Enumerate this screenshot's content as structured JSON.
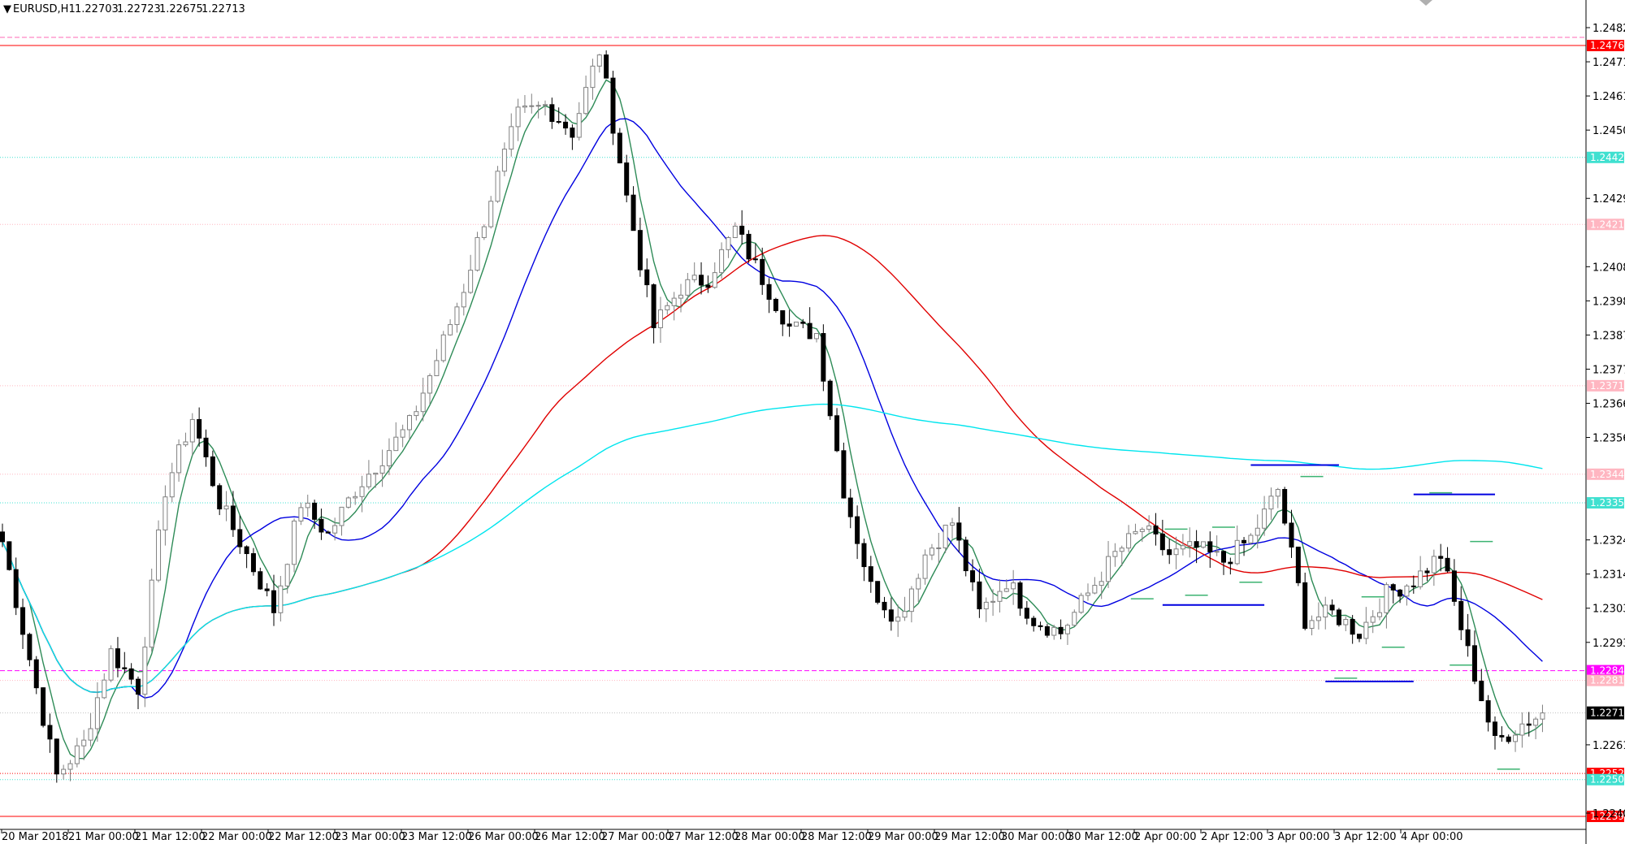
{
  "header": {
    "symbol": "EURUSD,H1",
    "open": "1.22703",
    "high": "1.22723",
    "low": "1.22675",
    "close": "1.22713",
    "menu_icon": "triangle-down-icon"
  },
  "colors": {
    "background": "#ffffff",
    "bull_candle": "#ffffff",
    "bear_candle": "#000000",
    "candle_outline": "#808080",
    "ma_fast": "#2e8b57",
    "ma_mid": "#0000e0",
    "ma_slow": "#e00000",
    "ma_cyan": "#00e5ee",
    "grid_border": "#000000"
  },
  "chart_data": {
    "type": "candlestick",
    "symbol": "EURUSD",
    "timeframe": "H1",
    "ylim": [
      1.22355,
      1.2487
    ],
    "price_ticks": [
      "1.24820",
      "1.24715",
      "1.24610",
      "1.24505",
      "1.24295",
      "1.24085",
      "1.23980",
      "1.23875",
      "1.23770",
      "1.23665",
      "1.23560",
      "1.23245",
      "1.23140",
      "1.23035",
      "1.22930",
      "1.22615",
      "1.22405"
    ],
    "time_labels": [
      "20 Mar 2018",
      "21 Mar 00:00",
      "21 Mar 12:00",
      "22 Mar 00:00",
      "22 Mar 12:00",
      "23 Mar 00:00",
      "23 Mar 12:00",
      "26 Mar 00:00",
      "26 Mar 12:00",
      "27 Mar 00:00",
      "27 Mar 12:00",
      "28 Mar 00:00",
      "28 Mar 12:00",
      "29 Mar 00:00",
      "29 Mar 12:00",
      "30 Mar 00:00",
      "30 Mar 12:00",
      "2 Apr 00:00",
      "2 Apr 12:00",
      "3 Apr 00:00",
      "3 Apr 12:00",
      "4 Apr 00:00"
    ],
    "current_price": {
      "value": 1.22713,
      "label": "1.22713"
    },
    "levels": [
      {
        "value": 1.2479,
        "label": "",
        "color": "#ff69b4",
        "style": "dashed",
        "tag": false
      },
      {
        "value": 1.24765,
        "label": "1.24765",
        "color": "#ff0000",
        "style": "solid",
        "tag": true
      },
      {
        "value": 1.24421,
        "label": "1.24421",
        "color": "#40e0d0",
        "style": "dotted",
        "tag": true
      },
      {
        "value": 1.24215,
        "label": "1.24215",
        "color": "#ffb6c1",
        "style": "dotted",
        "tag": true
      },
      {
        "value": 1.23719,
        "label": "1.23719",
        "color": "#ffb6c1",
        "style": "dotted",
        "tag": true
      },
      {
        "value": 1.23447,
        "label": "1.23447",
        "color": "#ffb6c1",
        "style": "dotted",
        "tag": true
      },
      {
        "value": 1.23359,
        "label": "1.23359",
        "color": "#40e0d0",
        "style": "dotted",
        "tag": true
      },
      {
        "value": 1.22843,
        "label": "1.22843",
        "color": "#ff00ff",
        "style": "dashed",
        "tag": true
      },
      {
        "value": 1.22813,
        "label": "1.22813",
        "color": "#ffb6c1",
        "style": "dotted",
        "tag": true
      },
      {
        "value": 1.22527,
        "label": "1.22527",
        "color": "#ff0000",
        "style": "dotted",
        "tag": true
      },
      {
        "value": 1.22508,
        "label": "1.22508",
        "color": "#40e0d0",
        "style": "dotted",
        "tag": true
      },
      {
        "value": 1.22395,
        "label": "1.22395",
        "color": "#ff0000",
        "style": "solid",
        "tag": true
      }
    ],
    "anchors": [
      [
        0,
        1.2324
      ],
      [
        8,
        1.2252
      ],
      [
        12,
        1.2262
      ],
      [
        16,
        1.229
      ],
      [
        20,
        1.2279
      ],
      [
        24,
        1.234
      ],
      [
        28,
        1.2362
      ],
      [
        32,
        1.2336
      ],
      [
        36,
        1.232
      ],
      [
        40,
        1.2303
      ],
      [
        44,
        1.2336
      ],
      [
        48,
        1.2326
      ],
      [
        52,
        1.234
      ],
      [
        56,
        1.235
      ],
      [
        60,
        1.236
      ],
      [
        64,
        1.238
      ],
      [
        68,
        1.2402
      ],
      [
        72,
        1.243
      ],
      [
        76,
        1.2455
      ],
      [
        80,
        1.2458
      ],
      [
        84,
        1.245
      ],
      [
        88,
        1.2475
      ],
      [
        92,
        1.243
      ],
      [
        96,
        1.239
      ],
      [
        100,
        1.2402
      ],
      [
        104,
        1.2405
      ],
      [
        108,
        1.242
      ],
      [
        112,
        1.2405
      ],
      [
        116,
        1.239
      ],
      [
        120,
        1.2388
      ],
      [
        124,
        1.234
      ],
      [
        128,
        1.231
      ],
      [
        132,
        1.23
      ],
      [
        136,
        1.232
      ],
      [
        140,
        1.233
      ],
      [
        144,
        1.2302
      ],
      [
        148,
        1.2312
      ],
      [
        152,
        1.23
      ],
      [
        156,
        1.2296
      ],
      [
        160,
        1.2308
      ],
      [
        164,
        1.232
      ],
      [
        168,
        1.2328
      ],
      [
        172,
        1.232
      ],
      [
        176,
        1.2322
      ],
      [
        180,
        1.2318
      ],
      [
        184,
        1.2325
      ],
      [
        188,
        1.234
      ],
      [
        192,
        1.23
      ],
      [
        196,
        1.2302
      ],
      [
        200,
        1.2296
      ],
      [
        204,
        1.2308
      ],
      [
        208,
        1.2312
      ],
      [
        212,
        1.232
      ],
      [
        216,
        1.229
      ],
      [
        220,
        1.2262
      ],
      [
        224,
        1.2268
      ],
      [
        227,
        1.2271
      ]
    ],
    "moving_averages": [
      {
        "period": 5,
        "color": "#2e8b57"
      },
      {
        "period": 20,
        "color": "#0000e0"
      },
      {
        "period": 60,
        "color": "#e00000"
      },
      {
        "period": 200,
        "color": "#00e5ee"
      }
    ],
    "fractal_marks": [
      {
        "bar": 173,
        "value": 1.23278,
        "color": "#3cb371"
      },
      {
        "bar": 180,
        "value": 1.23284,
        "color": "#3cb371"
      },
      {
        "bar": 184,
        "value": 1.23115,
        "color": "#3cb371"
      },
      {
        "bar": 176,
        "value": 1.23075,
        "color": "#3cb371"
      },
      {
        "bar": 168,
        "value": 1.23064,
        "color": "#3cb371"
      },
      {
        "bar": 193,
        "value": 1.2344,
        "color": "#3cb371"
      },
      {
        "bar": 198,
        "value": 1.2282,
        "color": "#3cb371"
      },
      {
        "bar": 202,
        "value": 1.2307,
        "color": "#3cb371"
      },
      {
        "bar": 205,
        "value": 1.22915,
        "color": "#3cb371"
      },
      {
        "bar": 212,
        "value": 1.2339,
        "color": "#3cb371"
      },
      {
        "bar": 215,
        "value": 1.2286,
        "color": "#3cb371"
      },
      {
        "bar": 218,
        "value": 1.2324,
        "color": "#3cb371"
      },
      {
        "bar": 222,
        "value": 1.2254,
        "color": "#3cb371"
      }
    ],
    "support_resistance": [
      {
        "bar_from": 171,
        "bar_to": 186,
        "value": 1.23045,
        "color": "#0000e0"
      },
      {
        "bar_from": 184,
        "bar_to": 197,
        "value": 1.23475,
        "color": "#0000e0"
      },
      {
        "bar_from": 195,
        "bar_to": 208,
        "value": 1.2281,
        "color": "#0000e0"
      },
      {
        "bar_from": 208,
        "bar_to": 220,
        "value": 1.23385,
        "color": "#0000e0"
      }
    ]
  }
}
